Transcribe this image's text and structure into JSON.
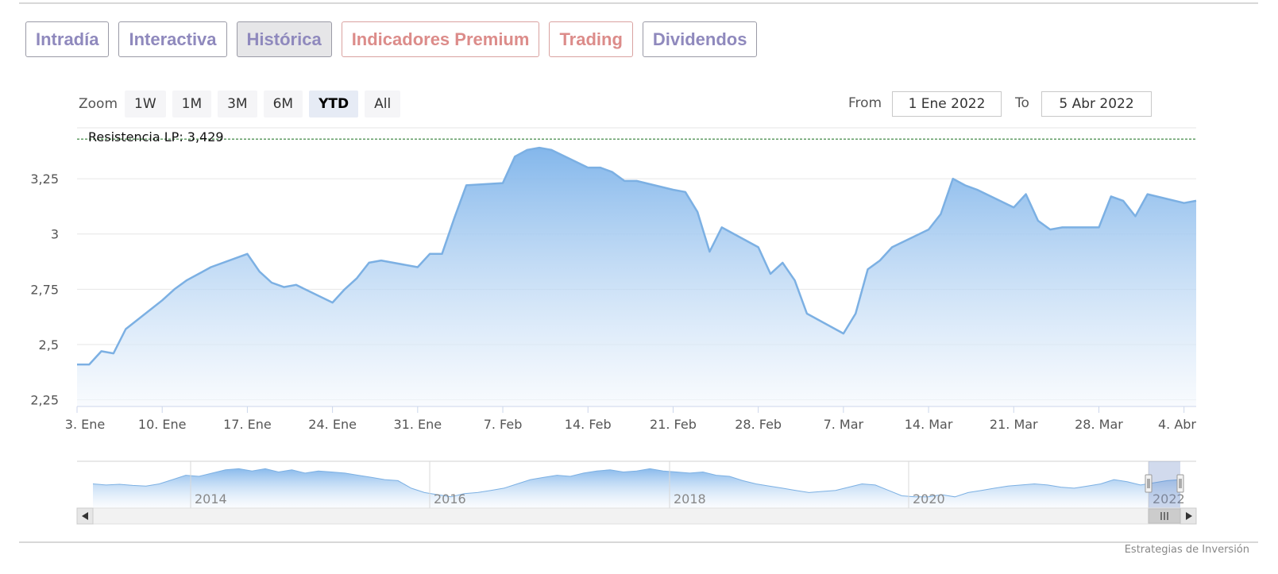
{
  "tabs": [
    {
      "label": "Intradía",
      "tone": "purple",
      "active": false
    },
    {
      "label": "Interactiva",
      "tone": "purple",
      "active": false
    },
    {
      "label": "Histórica",
      "tone": "purple",
      "active": true
    },
    {
      "label": "Indicadores Premium",
      "tone": "red",
      "active": false
    },
    {
      "label": "Trading",
      "tone": "red",
      "active": false
    },
    {
      "label": "Dividendos",
      "tone": "purple",
      "active": false
    }
  ],
  "zoom": {
    "label": "Zoom",
    "buttons": [
      "1W",
      "1M",
      "3M",
      "6M",
      "YTD",
      "All"
    ],
    "active": "YTD"
  },
  "range": {
    "from_label": "From",
    "from_value": "1 Ene 2022",
    "to_label": "To",
    "to_value": "5 Abr 2022"
  },
  "credits": "Estrategias de Inversión",
  "colors": {
    "line": "#7cb0e3",
    "fill_top": "#7db3ea",
    "fill_bottom": "#f4f8fd",
    "resistance": "#2e7d32",
    "grid": "#e6e6e6"
  },
  "chart_data": {
    "type": "area",
    "x_tick_labels": [
      "3. Ene",
      "10. Ene",
      "17. Ene",
      "24. Ene",
      "31. Ene",
      "7. Feb",
      "14. Feb",
      "21. Feb",
      "28. Feb",
      "7. Mar",
      "14. Mar",
      "21. Mar",
      "28. Mar",
      "4. Abr"
    ],
    "y_tick_labels": [
      "2,25",
      "2,5",
      "2,75",
      "3",
      "3,25"
    ],
    "y_ticks": [
      2.25,
      2.5,
      2.75,
      3,
      3.25
    ],
    "ylim": [
      2.22,
      3.48
    ],
    "resistance": {
      "label": "Resistencia LP: 3,429",
      "value": 3.429
    },
    "dates": [
      "2022-01-03",
      "2022-01-04",
      "2022-01-05",
      "2022-01-06",
      "2022-01-07",
      "2022-01-10",
      "2022-01-11",
      "2022-01-12",
      "2022-01-13",
      "2022-01-14",
      "2022-01-17",
      "2022-01-18",
      "2022-01-19",
      "2022-01-20",
      "2022-01-21",
      "2022-01-24",
      "2022-01-25",
      "2022-01-26",
      "2022-01-27",
      "2022-01-28",
      "2022-01-31",
      "2022-02-01",
      "2022-02-02",
      "2022-02-03",
      "2022-02-04",
      "2022-02-07",
      "2022-02-08",
      "2022-02-09",
      "2022-02-10",
      "2022-02-11",
      "2022-02-14",
      "2022-02-15",
      "2022-02-16",
      "2022-02-17",
      "2022-02-18",
      "2022-02-21",
      "2022-02-22",
      "2022-02-23",
      "2022-02-24",
      "2022-02-25",
      "2022-02-28",
      "2022-03-01",
      "2022-03-02",
      "2022-03-03",
      "2022-03-04",
      "2022-03-07",
      "2022-03-08",
      "2022-03-09",
      "2022-03-10",
      "2022-03-11",
      "2022-03-14",
      "2022-03-15",
      "2022-03-16",
      "2022-03-17",
      "2022-03-18",
      "2022-03-21",
      "2022-03-22",
      "2022-03-23",
      "2022-03-24",
      "2022-03-25",
      "2022-03-28",
      "2022-03-29",
      "2022-03-30",
      "2022-03-31",
      "2022-04-01",
      "2022-04-04",
      "2022-04-05"
    ],
    "values": [
      2.41,
      2.41,
      2.47,
      2.46,
      2.57,
      2.7,
      2.75,
      2.79,
      2.82,
      2.85,
      2.91,
      2.83,
      2.78,
      2.76,
      2.77,
      2.69,
      2.75,
      2.8,
      2.87,
      2.88,
      2.85,
      2.91,
      2.91,
      3.07,
      3.22,
      3.23,
      3.35,
      3.38,
      3.39,
      3.38,
      3.3,
      3.3,
      3.28,
      3.24,
      3.24,
      3.2,
      3.19,
      3.1,
      2.92,
      3.03,
      2.94,
      2.82,
      2.87,
      2.79,
      2.64,
      2.55,
      2.64,
      2.84,
      2.88,
      2.94,
      3.02,
      3.09,
      3.25,
      3.22,
      3.2,
      3.12,
      3.18,
      3.06,
      3.02,
      3.03,
      3.03,
      3.17,
      3.15,
      3.08,
      3.18,
      3.14,
      3.15
    ],
    "navigator": {
      "year_labels": [
        "2014",
        "2016",
        "2018",
        "2020",
        "2022"
      ],
      "values": [
        2.9,
        2.85,
        2.88,
        2.83,
        2.8,
        2.9,
        3.1,
        3.3,
        3.25,
        3.4,
        3.55,
        3.6,
        3.5,
        3.6,
        3.45,
        3.55,
        3.4,
        3.5,
        3.45,
        3.4,
        3.3,
        3.2,
        3.1,
        3.05,
        2.7,
        2.5,
        2.4,
        2.3,
        2.45,
        2.5,
        2.6,
        2.7,
        2.9,
        3.1,
        3.2,
        3.3,
        3.25,
        3.4,
        3.5,
        3.55,
        3.45,
        3.5,
        3.6,
        3.5,
        3.45,
        3.4,
        3.45,
        3.3,
        3.25,
        3.05,
        2.9,
        2.8,
        2.7,
        2.6,
        2.5,
        2.55,
        2.6,
        2.75,
        2.9,
        2.85,
        2.6,
        2.35,
        2.3,
        2.3,
        2.4,
        2.3,
        2.5,
        2.6,
        2.7,
        2.8,
        2.85,
        2.9,
        2.85,
        2.75,
        2.7,
        2.8,
        2.9,
        3.1,
        3.0,
        2.85,
        2.95,
        3.05,
        3.1
      ]
    }
  }
}
